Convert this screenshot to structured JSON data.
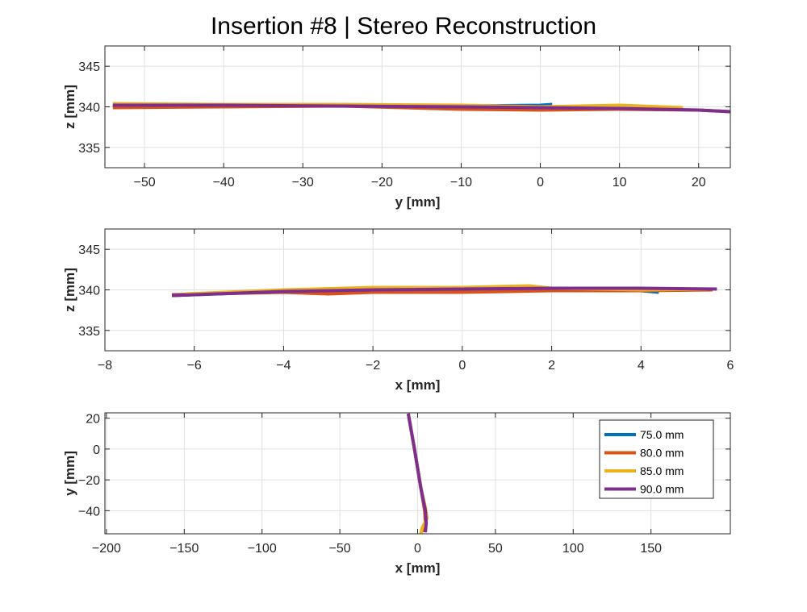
{
  "figure": {
    "title": "Insertion #8 | Stereo Reconstruction"
  },
  "colors": {
    "75.0 mm": "#0072BD",
    "80.0 mm": "#D95319",
    "85.0 mm": "#EDB120",
    "90.0 mm": "#7E2F8E"
  },
  "chart_data": [
    {
      "type": "line",
      "xlabel": "y [mm]",
      "ylabel": "z [mm]",
      "xlim": [
        -55,
        24
      ],
      "ylim": [
        332.5,
        347.5
      ],
      "xticks": [
        -50,
        -40,
        -30,
        -20,
        -10,
        0,
        10,
        20
      ],
      "yticks": [
        335,
        340,
        345
      ],
      "grid": true,
      "series": [
        {
          "name": "75.0 mm",
          "x": [
            -54,
            -40,
            -25,
            -10,
            0,
            1.5
          ],
          "y": [
            340.1,
            340.3,
            340.2,
            340.1,
            340.2,
            340.3
          ]
        },
        {
          "name": "80.0 mm",
          "x": [
            -54,
            -40,
            -25,
            -10,
            0,
            10,
            20,
            24
          ],
          "y": [
            339.9,
            340.0,
            340.1,
            339.7,
            339.6,
            339.7,
            339.6,
            339.4
          ]
        },
        {
          "name": "85.0 mm",
          "x": [
            -54,
            -40,
            -25,
            -10,
            0,
            10,
            18
          ],
          "y": [
            340.4,
            340.3,
            340.3,
            340.2,
            340.0,
            340.2,
            339.9
          ]
        },
        {
          "name": "90.0 mm",
          "x": [
            -54,
            -40,
            -25,
            -10,
            0,
            10,
            20,
            24
          ],
          "y": [
            340.2,
            340.2,
            340.1,
            340.0,
            339.9,
            339.8,
            339.6,
            339.4
          ]
        }
      ]
    },
    {
      "type": "line",
      "xlabel": "x [mm]",
      "ylabel": "z [mm]",
      "xlim": [
        -8,
        6
      ],
      "ylim": [
        332.5,
        347.5
      ],
      "xticks": [
        -8,
        -6,
        -4,
        -2,
        0,
        2,
        4,
        6
      ],
      "yticks": [
        335,
        340,
        345
      ],
      "grid": true,
      "series": [
        {
          "name": "75.0 mm",
          "x": [
            -6.5,
            -4,
            -2,
            0,
            2,
            4,
            4.4
          ],
          "y": [
            339.3,
            339.8,
            340.0,
            340.1,
            340.2,
            339.9,
            339.7
          ]
        },
        {
          "name": "80.0 mm",
          "x": [
            -6.5,
            -4,
            -3,
            -2,
            0,
            2,
            4,
            5.6
          ],
          "y": [
            339.4,
            339.7,
            339.5,
            339.7,
            339.7,
            339.9,
            339.9,
            340.0
          ]
        },
        {
          "name": "85.0 mm",
          "x": [
            -6.2,
            -4,
            -2,
            0,
            1.5,
            2,
            4,
            5.5
          ],
          "y": [
            339.5,
            340.0,
            340.3,
            340.3,
            340.5,
            340.2,
            340.0,
            340.1
          ]
        },
        {
          "name": "90.0 mm",
          "x": [
            -6.5,
            -4,
            -2,
            0,
            2,
            4,
            5.7
          ],
          "y": [
            339.3,
            339.8,
            340.0,
            340.1,
            340.2,
            340.2,
            340.1
          ]
        }
      ]
    },
    {
      "type": "line",
      "xlabel": "x [mm]",
      "ylabel": "y [mm]",
      "xlim": [
        -201,
        201
      ],
      "ylim": [
        -55,
        23.5
      ],
      "xticks": [
        -200,
        -150,
        -100,
        -50,
        0,
        50,
        100,
        150
      ],
      "yticks": [
        -40,
        -20,
        0,
        20
      ],
      "grid": true,
      "legend": {
        "location": "top-right",
        "entries": [
          "75.0 mm",
          "80.0 mm",
          "85.0 mm",
          "90.0 mm"
        ]
      },
      "series": [
        {
          "name": "75.0 mm",
          "x": [
            -6,
            -2,
            2,
            5,
            5.5,
            4.5
          ],
          "y": [
            23,
            0,
            -25,
            -40,
            -48,
            -54
          ]
        },
        {
          "name": "80.0 mm",
          "x": [
            -6,
            -2,
            2,
            4.5,
            5,
            4
          ],
          "y": [
            23,
            0,
            -25,
            -40,
            -48,
            -54
          ]
        },
        {
          "name": "85.0 mm",
          "x": [
            -6,
            -2,
            2,
            5,
            6,
            3,
            2
          ],
          "y": [
            23,
            0,
            -25,
            -38,
            -45,
            -51,
            -55
          ]
        },
        {
          "name": "90.0 mm",
          "x": [
            -6,
            -2,
            2,
            5,
            5.5,
            5
          ],
          "y": [
            23,
            0,
            -25,
            -40,
            -48,
            -54
          ]
        }
      ]
    }
  ]
}
